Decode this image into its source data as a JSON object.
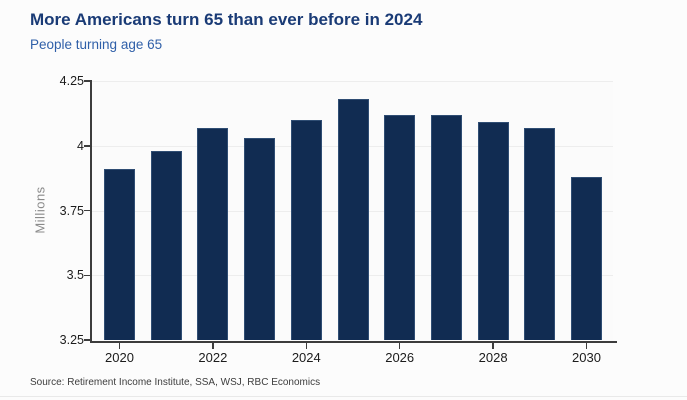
{
  "page": {
    "title": "More Americans turn 65 than ever before in 2024",
    "subtitle": "People turning age 65",
    "source_note": "Source: Retirement Income Institute, SSA, WSJ, RBC Economics"
  },
  "colors": {
    "title": "#1a3b76",
    "subtitle": "#2f5fa8",
    "bar": "#112c52",
    "bar_border": "#2f4d73",
    "axis": "#3c3c3c",
    "tick_text": "#1c1c1c",
    "axis_unit_text": "#8a8a8a",
    "gridline": "#ededed",
    "source_text": "#3d3d3d",
    "background": "#fcfcfc",
    "plot_background": "#fbfbfb"
  },
  "chart_data": {
    "type": "bar",
    "title": "More Americans turn 65 than ever before in 2024",
    "subtitle": "People turning age 65",
    "categories": [
      "2020",
      "2021",
      "2022",
      "2023",
      "2024",
      "2025",
      "2026",
      "2027",
      "2028",
      "2029",
      "2030"
    ],
    "values": [
      3.91,
      3.98,
      4.07,
      4.03,
      4.1,
      4.18,
      4.12,
      4.12,
      4.09,
      4.07,
      3.88
    ],
    "xlabel": "",
    "ylabel": "Millions",
    "ylim": [
      3.25,
      4.25
    ],
    "yticks": [
      4.25,
      4.0,
      3.75,
      3.5,
      3.25
    ],
    "ytick_labels": [
      "4.25",
      "4",
      "3.75",
      "3.5",
      "3.25"
    ],
    "xtick_labels": [
      "2020",
      "2022",
      "2024",
      "2026",
      "2028",
      "2030"
    ],
    "xtick_every": 2,
    "grid": true,
    "legend": false
  }
}
